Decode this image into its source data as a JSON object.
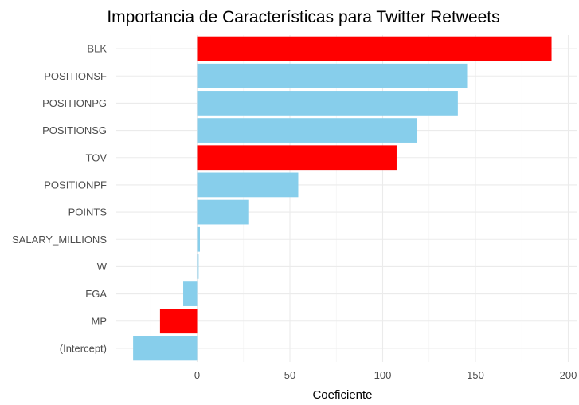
{
  "chart_data": {
    "type": "bar",
    "orientation": "horizontal",
    "title": "Importancia de Características para Twitter Retweets",
    "xlabel": "Coeficiente",
    "ylabel": "",
    "xlim": [
      -40,
      205
    ],
    "x_ticks": [
      0,
      50,
      100,
      150,
      200
    ],
    "grid": true,
    "legend": "none",
    "colors": {
      "positive_highlight": "#ff0000",
      "default": "#87ceeb"
    },
    "categories": [
      "BLK",
      "POSITIONSF",
      "POSITIONPG",
      "POSITIONSG",
      "TOV",
      "POSITIONPF",
      "POINTS",
      "SALARY_MILLIONS",
      "W",
      "FGA",
      "MP",
      "(Intercept)"
    ],
    "values": [
      191,
      145.5,
      140.5,
      118.5,
      107.5,
      54.5,
      28,
      1.5,
      0.8,
      -7.5,
      -20,
      -34.5
    ],
    "bar_colors": [
      "#ff0000",
      "#87ceeb",
      "#87ceeb",
      "#87ceeb",
      "#ff0000",
      "#87ceeb",
      "#87ceeb",
      "#87ceeb",
      "#87ceeb",
      "#87ceeb",
      "#ff0000",
      "#87ceeb"
    ]
  }
}
